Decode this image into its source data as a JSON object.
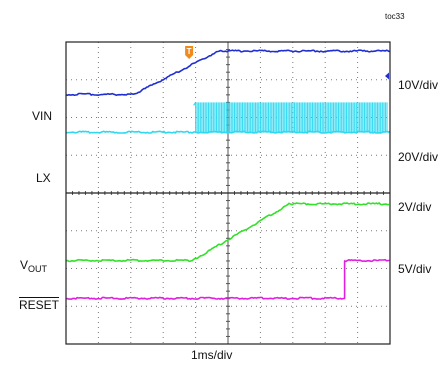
{
  "figure_id": "toc33",
  "chart_data": {
    "type": "line",
    "title": "",
    "xlabel": "1ms/div",
    "x_divisions": 10,
    "y_divisions": 8,
    "grid": true,
    "x_unit": "div",
    "y_unit": "div",
    "series": [
      {
        "name": "VIN",
        "scale": "10V/div",
        "color": "#1f2fd0",
        "x": [
          0,
          2.1,
          4.6,
          4.8,
          10
        ],
        "y": [
          6.6,
          6.6,
          7.7,
          7.75,
          7.75
        ]
      },
      {
        "name": "LX",
        "scale": "20V/div",
        "color": "#2fd8f0",
        "x": [
          0,
          3.9,
          10
        ],
        "y": [
          5.6,
          5.6,
          5.6
        ],
        "switching_from": 4.0,
        "switching_top": 6.4
      },
      {
        "name": "VOUT",
        "scale": "2V/div",
        "color": "#33e02a",
        "x": [
          0,
          3.9,
          6.9,
          10
        ],
        "y": [
          2.2,
          2.2,
          3.7,
          3.7
        ]
      },
      {
        "name": "RESET",
        "scale": "5V/div",
        "color": "#e020e0",
        "x": [
          0,
          8.6,
          8.6,
          10
        ],
        "y": [
          1.2,
          1.2,
          2.2,
          2.2
        ]
      }
    ],
    "labels": {
      "vin": "VIN",
      "lx": "LX",
      "vout_main": "V",
      "vout_sub": "OUT",
      "reset": "RESET"
    },
    "scales": [
      "10V/div",
      "20V/div",
      "2V/div",
      "5V/div"
    ],
    "trigger_marker": "T"
  }
}
